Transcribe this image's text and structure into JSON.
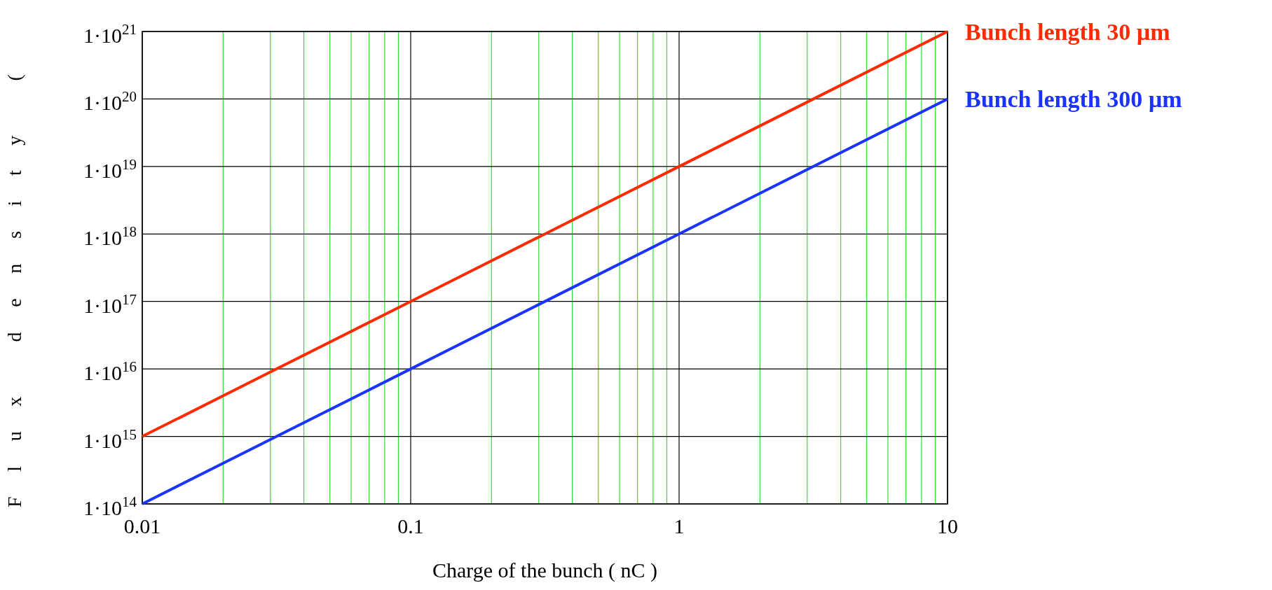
{
  "chart_data": {
    "type": "line",
    "xlabel": "Charge of  the  bunch ( nC )",
    "ylabel": "Flux density (",
    "log": "xy",
    "xlim": [
      0.01,
      10
    ],
    "ylim": [
      100000000000000.0,
      1e+21
    ],
    "xticks": [
      0.01,
      {
        "value": 0.02,
        "label": null
      },
      {
        "value": 0.03,
        "label": null
      },
      {
        "value": 0.04,
        "label": null
      },
      {
        "value": 0.05,
        "label": null
      },
      {
        "value": 0.06,
        "label": null
      },
      {
        "value": 0.07,
        "label": null
      },
      {
        "value": 0.08,
        "label": null
      },
      {
        "value": 0.09,
        "label": null
      },
      0.1,
      {
        "value": 0.2,
        "label": null
      },
      {
        "value": 0.3,
        "label": null
      },
      {
        "value": 0.4,
        "label": null
      },
      {
        "value": 0.5,
        "label": null
      },
      {
        "value": 0.6,
        "label": null
      },
      {
        "value": 0.7,
        "label": null
      },
      {
        "value": 0.8,
        "label": null
      },
      {
        "value": 0.9,
        "label": null
      },
      1,
      {
        "value": 2,
        "label": null
      },
      {
        "value": 3,
        "label": null
      },
      {
        "value": 4,
        "label": null
      },
      {
        "value": 5,
        "label": null
      },
      {
        "value": 6,
        "label": null
      },
      {
        "value": 7,
        "label": null
      },
      {
        "value": 8,
        "label": null
      },
      {
        "value": 9,
        "label": null
      },
      10
    ],
    "yticks": [
      {
        "value": 100000000000000.0,
        "label": "1·10$^{14}$"
      },
      {
        "value": 1000000000000000.0,
        "label": "1·10$^{15}$"
      },
      {
        "value": 1e+16,
        "label": "1·10$^{16}$"
      },
      {
        "value": 1e+17,
        "label": "1·10$^{17}$"
      },
      {
        "value": 1e+18,
        "label": "1·10$^{18}$"
      },
      {
        "value": 1e+19,
        "label": "1·10$^{19}$"
      },
      {
        "value": 1e+20,
        "label": "1·10$^{20}$"
      },
      {
        "value": 1e+21,
        "label": "1·10$^{21}$"
      }
    ],
    "grid": true,
    "legend": false,
    "line_style": "solid",
    "marker": "none",
    "x": [
      0.01,
      0.03,
      0.1,
      0.3,
      1,
      3,
      10
    ],
    "series": [
      {
        "name": "Bunch length 30 µm",
        "color": "#ff2a00",
        "values": [
          1000000000000000.0,
          9000000000000000.0,
          1e+17,
          9e+17,
          1e+19,
          9e+19,
          1e+21
        ]
      },
      {
        "name": "Bunch length 300 µm",
        "color": "#1a33ff",
        "values": [
          100000000000000.0,
          900000000000000.0,
          1e+16,
          9e+16,
          1e+18,
          9e+18,
          1e+20
        ]
      }
    ]
  }
}
